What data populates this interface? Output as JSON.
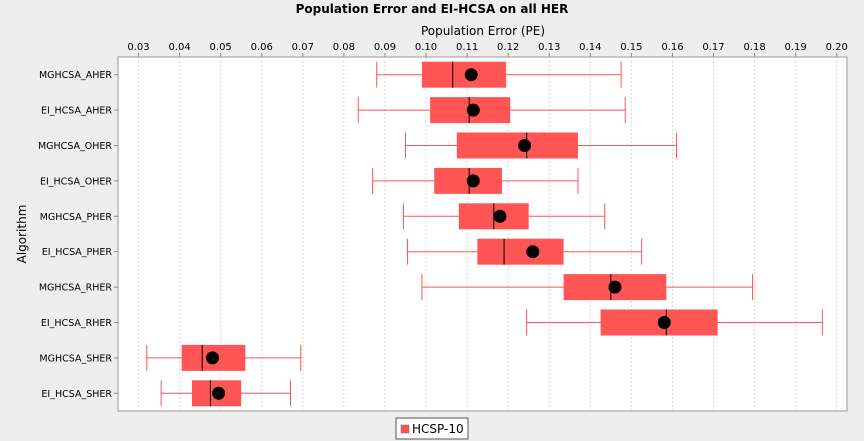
{
  "chart_data": {
    "type": "box",
    "orientation": "horizontal",
    "title": "Population Error and EI-HCSA on all HER",
    "xlabel": "Population Error (PE)",
    "ylabel": "Algorithm",
    "xlim": [
      0.025,
      0.2025
    ],
    "xticks": [
      "0.03",
      "0.04",
      "0.05",
      "0.06",
      "0.07",
      "0.08",
      "0.09",
      "0.10",
      "0.11",
      "0.12",
      "0.13",
      "0.14",
      "0.15",
      "0.16",
      "0.17",
      "0.18",
      "0.19",
      "0.20"
    ],
    "x_axis_position": "top",
    "grid": true,
    "legend_position": "bottom-left",
    "series": [
      {
        "name": "HCSP-10",
        "color": "#ff5555",
        "boxes": [
          {
            "category": "MGHCSA_AHER",
            "whisker_low": 0.088,
            "q1": 0.099,
            "median": 0.1065,
            "q3": 0.1195,
            "whisker_high": 0.1475,
            "mean": 0.111
          },
          {
            "category": "EI_HCSA_AHER",
            "whisker_low": 0.0835,
            "q1": 0.101,
            "median": 0.1105,
            "q3": 0.1205,
            "whisker_high": 0.1485,
            "mean": 0.1115
          },
          {
            "category": "MGHCSA_OHER",
            "whisker_low": 0.095,
            "q1": 0.1075,
            "median": 0.1245,
            "q3": 0.137,
            "whisker_high": 0.161,
            "mean": 0.124
          },
          {
            "category": "EI_HCSA_OHER",
            "whisker_low": 0.087,
            "q1": 0.102,
            "median": 0.1105,
            "q3": 0.1185,
            "whisker_high": 0.137,
            "mean": 0.1115
          },
          {
            "category": "MGHCSA_PHER",
            "whisker_low": 0.0945,
            "q1": 0.108,
            "median": 0.1165,
            "q3": 0.125,
            "whisker_high": 0.1435,
            "mean": 0.118
          },
          {
            "category": "EI_HCSA_PHER",
            "whisker_low": 0.0955,
            "q1": 0.1125,
            "median": 0.119,
            "q3": 0.1335,
            "whisker_high": 0.1525,
            "mean": 0.126
          },
          {
            "category": "MGHCSA_RHER",
            "whisker_low": 0.099,
            "q1": 0.1335,
            "median": 0.145,
            "q3": 0.1585,
            "whisker_high": 0.1795,
            "mean": 0.146
          },
          {
            "category": "EI_HCSA_RHER",
            "whisker_low": 0.1245,
            "q1": 0.1425,
            "median": 0.1585,
            "q3": 0.171,
            "whisker_high": 0.1965,
            "mean": 0.158
          },
          {
            "category": "MGHCSA_SHER",
            "whisker_low": 0.032,
            "q1": 0.0405,
            "median": 0.0455,
            "q3": 0.056,
            "whisker_high": 0.0695,
            "mean": 0.048
          },
          {
            "category": "EI_HCSA_SHER",
            "whisker_low": 0.0355,
            "q1": 0.043,
            "median": 0.0475,
            "q3": 0.055,
            "whisker_high": 0.067,
            "mean": 0.0495
          }
        ]
      }
    ]
  }
}
